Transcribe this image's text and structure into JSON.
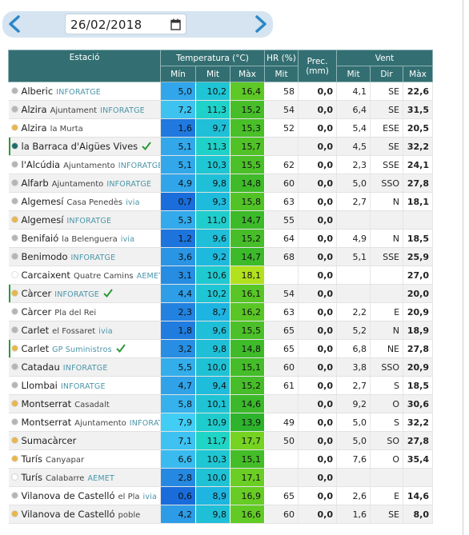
{
  "toolbar": {
    "date": "26/02/2018"
  },
  "table": {
    "headers": {
      "station": "Estació",
      "temperature": "Temperatura (°C)",
      "humidity": "HR (%)",
      "precipitation": "Prec. (mm)",
      "wind": "Vent",
      "sub": [
        "Mín",
        "Mit",
        "Màx",
        "Mit",
        "Mit",
        "Dir",
        "Màx"
      ]
    },
    "rows": [
      {
        "name": "Alberic",
        "place": null,
        "tag": "INFORATGE",
        "dot": "#b5b5b5",
        "check": false,
        "values": [
          "5,0",
          "10,2",
          "16,4",
          "58",
          "0,0",
          "4,1",
          "SE",
          "22,6"
        ]
      },
      {
        "name": "Alzira",
        "place": "Ajuntament",
        "tag": "INFORATGE",
        "dot": "#b5b5b5",
        "check": false,
        "values": [
          "7,2",
          "11,3",
          "15,2",
          "54",
          "0,0",
          "6,4",
          "SE",
          "31,5"
        ]
      },
      {
        "name": "Alzira",
        "place": "la Murta",
        "tag": null,
        "dot": "#e8b64a",
        "check": false,
        "values": [
          "1,6",
          "9,7",
          "15,3",
          "52",
          "0,0",
          "5,4",
          "ESE",
          "20,5"
        ]
      },
      {
        "name": "la Barraca d'Aigües Vives",
        "place": null,
        "tag": null,
        "dot": "#1e6b6b",
        "check": true,
        "values": [
          "5,1",
          "11,3",
          "15,7",
          null,
          "0,0",
          "4,5",
          "SE",
          "32,2"
        ]
      },
      {
        "name": "l'Alcúdia",
        "place": "Ajuntamento",
        "tag": "INFORATGE",
        "dot": "#b5b5b5",
        "check": false,
        "values": [
          "5,1",
          "10,3",
          "15,5",
          "62",
          "0,0",
          "2,3",
          "SSE",
          "24,1"
        ]
      },
      {
        "name": "Alfarb",
        "place": "Ajuntamento",
        "tag": "INFORATGE",
        "dot": "#b5b5b5",
        "check": false,
        "values": [
          "4,9",
          "9,8",
          "14,8",
          "60",
          "0,0",
          "5,0",
          "SSO",
          "27,8"
        ]
      },
      {
        "name": "Algemesí",
        "place": "Casa Penedès",
        "tag": "ivia",
        "dot": "#b5b5b5",
        "check": false,
        "values": [
          "0,7",
          "9,3",
          "15,8",
          "63",
          "0,0",
          "2,7",
          "N",
          "18,1"
        ]
      },
      {
        "name": "Algemesí",
        "place": null,
        "tag": "INFORATGE",
        "dot": "#e8b64a",
        "check": false,
        "values": [
          "5,3",
          "11,0",
          "14,7",
          "55",
          "0,0",
          null,
          null,
          null
        ]
      },
      {
        "name": "Benifaió",
        "place": "la Belenguera",
        "tag": "ivia",
        "dot": "#b5b5b5",
        "check": false,
        "values": [
          "1,2",
          "9,6",
          "15,2",
          "64",
          "0,0",
          "4,9",
          "N",
          "18,5"
        ]
      },
      {
        "name": "Benimodo",
        "place": null,
        "tag": "INFORATGE",
        "dot": "#b5b5b5",
        "check": false,
        "values": [
          "3,6",
          "9,2",
          "14,7",
          "68",
          "0,0",
          "5,1",
          "SSE",
          "25,9"
        ]
      },
      {
        "name": "Carcaixent",
        "place": "Quatre Camins",
        "tag": "AEMET",
        "dot": "#ffffff",
        "check": false,
        "values": [
          "3,1",
          "10,6",
          "18,1",
          null,
          "0,0",
          null,
          null,
          "27,0"
        ]
      },
      {
        "name": "Càrcer",
        "place": null,
        "tag": "INFORATGE",
        "dot": "#e8b64a",
        "check": true,
        "values": [
          "4,4",
          "10,2",
          "16,1",
          "54",
          "0,0",
          null,
          null,
          "20,0"
        ]
      },
      {
        "name": "Càrcer",
        "place": "Pla del Rei",
        "tag": null,
        "dot": "#b5b5b5",
        "check": false,
        "values": [
          "2,3",
          "8,7",
          "16,2",
          "63",
          "0,0",
          "2,2",
          "E",
          "20,9"
        ]
      },
      {
        "name": "Carlet",
        "place": "el Fossaret",
        "tag": "ivia",
        "dot": "#b5b5b5",
        "check": false,
        "values": [
          "1,8",
          "9,6",
          "15,5",
          "65",
          "0,0",
          "5,2",
          "N",
          "18,9"
        ]
      },
      {
        "name": "Carlet",
        "place": null,
        "tag": "GP Suministros",
        "dot": "#e8b64a",
        "check": true,
        "values": [
          "3,2",
          "9,8",
          "14,8",
          "65",
          "0,0",
          "6,8",
          "NE",
          "27,8"
        ]
      },
      {
        "name": "Catadau",
        "place": null,
        "tag": "INFORATGE",
        "dot": "#b5b5b5",
        "check": false,
        "values": [
          "5,5",
          "10,0",
          "15,1",
          "60",
          "0,0",
          "3,8",
          "SSO",
          "20,9"
        ]
      },
      {
        "name": "Llombai",
        "place": null,
        "tag": "INFORATGE",
        "dot": "#b5b5b5",
        "check": false,
        "values": [
          "4,7",
          "9,4",
          "15,2",
          "61",
          "0,0",
          "2,7",
          "S",
          "18,5"
        ]
      },
      {
        "name": "Montserrat",
        "place": "Casadalt",
        "tag": null,
        "dot": "#e8b64a",
        "check": false,
        "values": [
          "5,8",
          "10,1",
          "14,6",
          null,
          "0,0",
          "9,2",
          "O",
          "30,6"
        ]
      },
      {
        "name": "Montserrat",
        "place": "Ajuntamento",
        "tag": "INFORATGE",
        "dot": "#b5b5b5",
        "check": false,
        "values": [
          "7,9",
          "10,9",
          "13,9",
          "49",
          "0,0",
          "5,0",
          "S",
          "32,2"
        ]
      },
      {
        "name": "Sumacàrcer",
        "place": null,
        "tag": null,
        "dot": "#e8b64a",
        "check": false,
        "values": [
          "7,1",
          "11,7",
          "17,7",
          "50",
          "0,0",
          "5,0",
          "SO",
          "27,8"
        ]
      },
      {
        "name": "Turís",
        "place": "Canyapar",
        "tag": null,
        "dot": "#e8b64a",
        "check": false,
        "values": [
          "6,6",
          "10,3",
          "15,1",
          null,
          "0,0",
          "7,6",
          "O",
          "35,4"
        ]
      },
      {
        "name": "Turís",
        "place": "Calabarre",
        "tag": "AEMET",
        "dot": "#ffffff",
        "check": false,
        "values": [
          "2,8",
          "10,0",
          "17,1",
          null,
          "0,0",
          null,
          null,
          null
        ]
      },
      {
        "name": "Vilanova de Castelló",
        "place": "el Pla",
        "tag": "ivia",
        "dot": "#b5b5b5",
        "check": false,
        "values": [
          "0,6",
          "8,9",
          "16,9",
          "65",
          "0,0",
          "2,6",
          "E",
          "14,6"
        ]
      },
      {
        "name": "Vilanova de Castelló",
        "place": "poble",
        "tag": null,
        "dot": "#e8b64a",
        "check": false,
        "values": [
          "4,2",
          "9,8",
          "16,6",
          "60",
          "0,0",
          "1,6",
          "SE",
          "8,0"
        ]
      }
    ]
  }
}
